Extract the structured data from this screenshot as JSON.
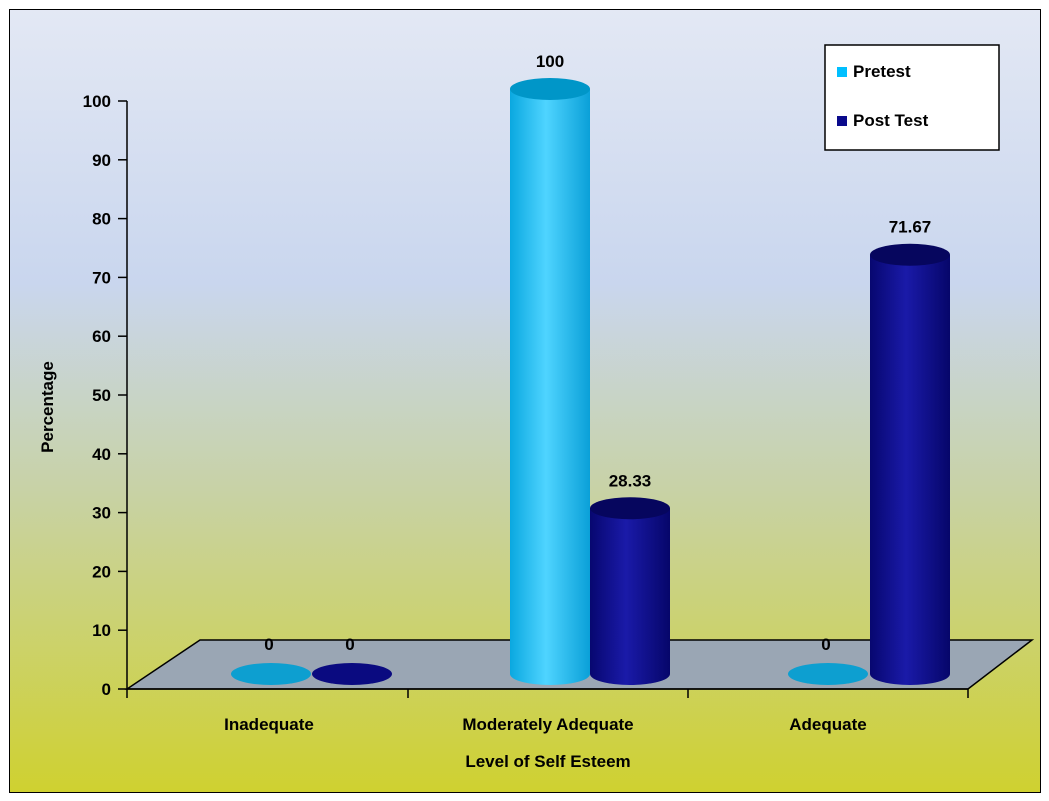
{
  "chart_data": {
    "type": "bar",
    "categories": [
      "Inadequate",
      "Moderately Adequate",
      "Adequate"
    ],
    "series": [
      {
        "name": "Pretest",
        "values": [
          0,
          100,
          0
        ],
        "color": "#00bfff"
      },
      {
        "name": "Post Test",
        "values": [
          0,
          28.33,
          71.67
        ],
        "color": "#0a0a8c"
      }
    ],
    "data_labels": [
      [
        "0",
        "100",
        "0"
      ],
      [
        "0",
        "28.33",
        "71.67"
      ]
    ],
    "xlabel": "Level of Self Esteem",
    "ylabel": "Percentage",
    "yticks": [
      0,
      10,
      20,
      30,
      40,
      50,
      60,
      70,
      80,
      90,
      100
    ],
    "ylim": [
      0,
      100
    ],
    "legend_position": "top-right",
    "grid": false,
    "style": "3d-cylinder"
  }
}
